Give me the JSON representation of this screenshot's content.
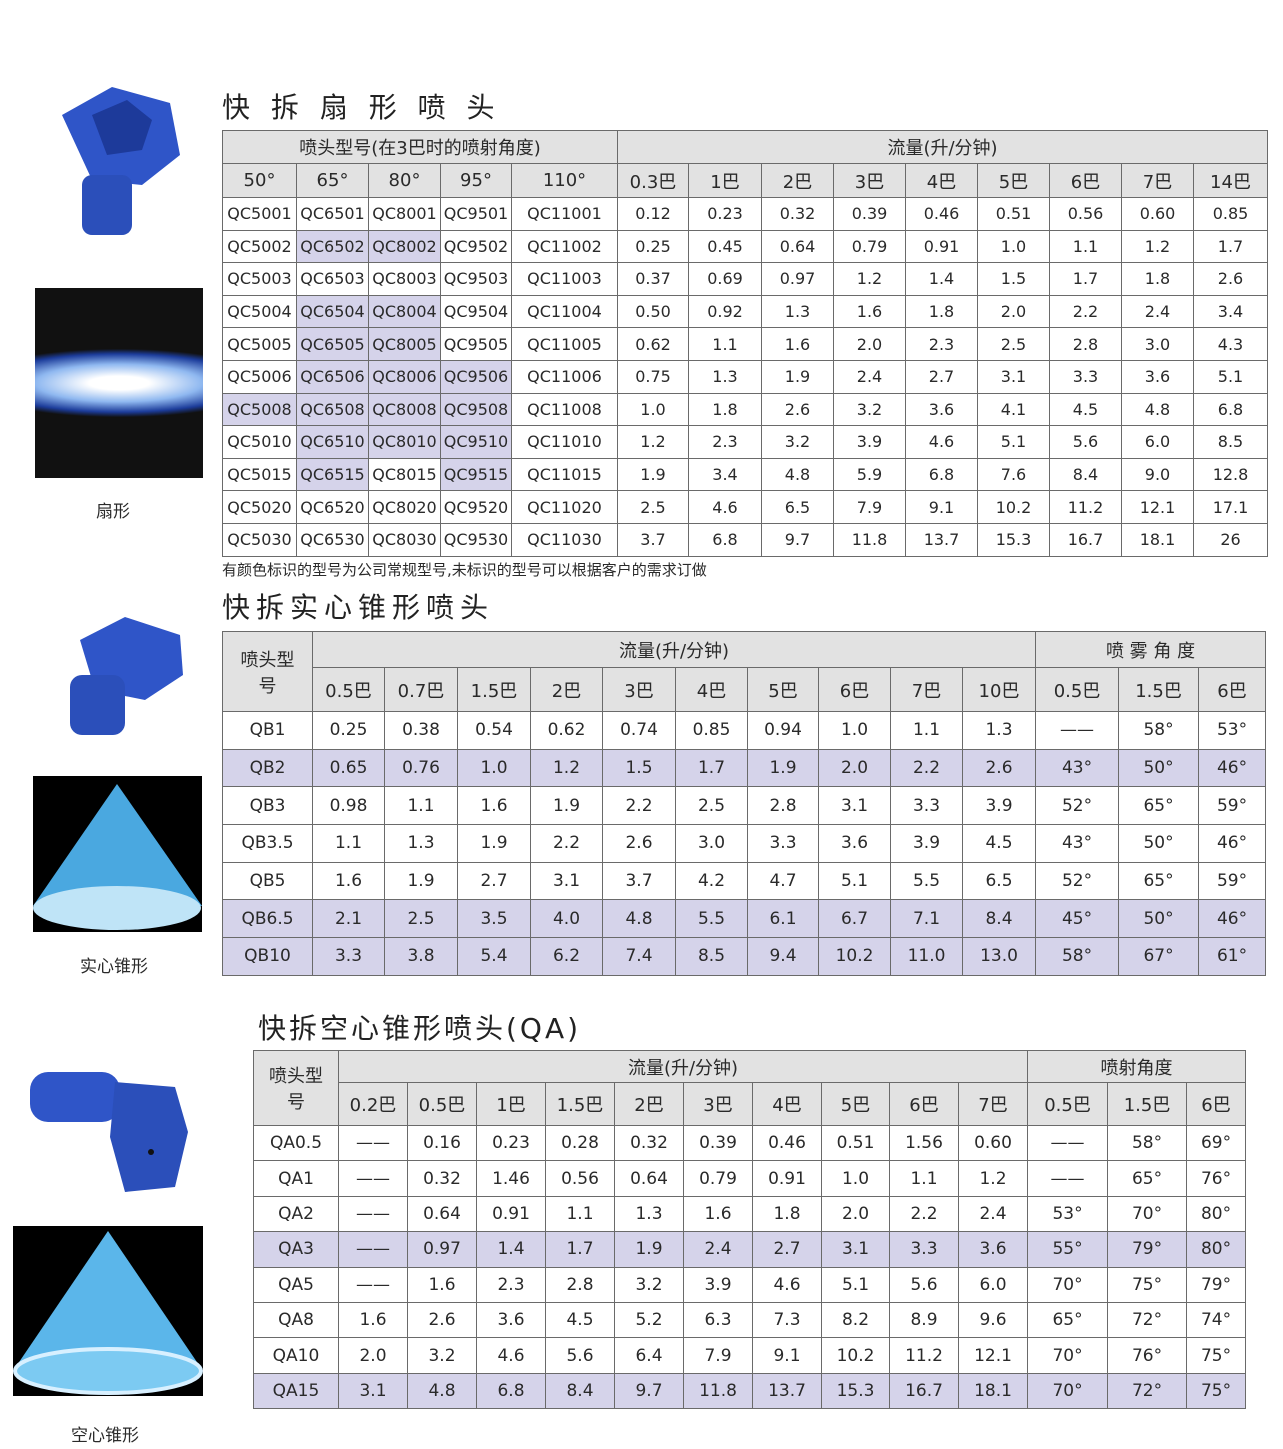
{
  "fan": {
    "title": "快 拆 扇 形 喷 头",
    "label": "扇形",
    "note": "有颜色标识的型号为公司常规型号,未标识的型号可以根据客户的需求订做",
    "group_model": "喷头型号(在3巴时的喷射角度)",
    "group_flow": "流量(升/分钟)",
    "angles": [
      "50°",
      "65°",
      "80°",
      "95°",
      "110°"
    ],
    "pressures": [
      "0.3巴",
      "1巴",
      "2巴",
      "3巴",
      "4巴",
      "5巴",
      "6巴",
      "7巴",
      "14巴"
    ],
    "rows": [
      [
        "QC5001",
        "QC6501",
        "QC8001",
        "QC9501",
        "QC11001",
        "0.12",
        "0.23",
        "0.32",
        "0.39",
        "0.46",
        "0.51",
        "0.56",
        "0.60",
        "0.85"
      ],
      [
        "QC5002",
        "QC6502",
        "QC8002",
        "QC9502",
        "QC11002",
        "0.25",
        "0.45",
        "0.64",
        "0.79",
        "0.91",
        "1.0",
        "1.1",
        "1.2",
        "1.7"
      ],
      [
        "QC5003",
        "QC6503",
        "QC8003",
        "QC9503",
        "QC11003",
        "0.37",
        "0.69",
        "0.97",
        "1.2",
        "1.4",
        "1.5",
        "1.7",
        "1.8",
        "2.6"
      ],
      [
        "QC5004",
        "QC6504",
        "QC8004",
        "QC9504",
        "QC11004",
        "0.50",
        "0.92",
        "1.3",
        "1.6",
        "1.8",
        "2.0",
        "2.2",
        "2.4",
        "3.4"
      ],
      [
        "QC5005",
        "QC6505",
        "QC8005",
        "QC9505",
        "QC11005",
        "0.62",
        "1.1",
        "1.6",
        "2.0",
        "2.3",
        "2.5",
        "2.8",
        "3.0",
        "4.3"
      ],
      [
        "QC5006",
        "QC6506",
        "QC8006",
        "QC9506",
        "QC11006",
        "0.75",
        "1.3",
        "1.9",
        "2.4",
        "2.7",
        "3.1",
        "3.3",
        "3.6",
        "5.1"
      ],
      [
        "QC5008",
        "QC6508",
        "QC8008",
        "QC9508",
        "QC11008",
        "1.0",
        "1.8",
        "2.6",
        "3.2",
        "3.6",
        "4.1",
        "4.5",
        "4.8",
        "6.8"
      ],
      [
        "QC5010",
        "QC6510",
        "QC8010",
        "QC9510",
        "QC11010",
        "1.2",
        "2.3",
        "3.2",
        "3.9",
        "4.6",
        "5.1",
        "5.6",
        "6.0",
        "8.5"
      ],
      [
        "QC5015",
        "QC6515",
        "QC8015",
        "QC9515",
        "QC11015",
        "1.9",
        "3.4",
        "4.8",
        "5.9",
        "6.8",
        "7.6",
        "8.4",
        "9.0",
        "12.8"
      ],
      [
        "QC5020",
        "QC6520",
        "QC8020",
        "QC9520",
        "QC11020",
        "2.5",
        "4.6",
        "6.5",
        "7.9",
        "9.1",
        "10.2",
        "11.2",
        "12.1",
        "17.1"
      ],
      [
        "QC5030",
        "QC6530",
        "QC8030",
        "QC9530",
        "QC11030",
        "3.7",
        "6.8",
        "9.7",
        "11.8",
        "13.7",
        "15.3",
        "16.7",
        "18.1",
        "26"
      ]
    ],
    "highlighted": [
      "QC6502",
      "QC8002",
      "QC6504",
      "QC8004",
      "QC6505",
      "QC8005",
      "QC6506",
      "QC8006",
      "QC9506",
      "QC5008",
      "QC6508",
      "QC8008",
      "QC9508",
      "QC6510",
      "QC8010",
      "QC9510",
      "QC6515",
      "QC9515"
    ]
  },
  "full": {
    "title": "快拆实心锥形喷头",
    "label": "实心锥形",
    "model_header": "喷头型号",
    "group_flow": "流量(升/分钟)",
    "group_angle": "喷 雾 角 度",
    "pressures": [
      "0.5巴",
      "0.7巴",
      "1.5巴",
      "2巴",
      "3巴",
      "4巴",
      "5巴",
      "6巴",
      "7巴",
      "10巴"
    ],
    "angle_pressures": [
      "0.5巴",
      "1.5巴",
      "6巴"
    ],
    "rows": [
      [
        "QB1",
        "0.25",
        "0.38",
        "0.54",
        "0.62",
        "0.74",
        "0.85",
        "0.94",
        "1.0",
        "1.1",
        "1.3",
        "——",
        "58°",
        "53°"
      ],
      [
        "QB2",
        "0.65",
        "0.76",
        "1.0",
        "1.2",
        "1.5",
        "1.7",
        "1.9",
        "2.0",
        "2.2",
        "2.6",
        "43°",
        "50°",
        "46°"
      ],
      [
        "QB3",
        "0.98",
        "1.1",
        "1.6",
        "1.9",
        "2.2",
        "2.5",
        "2.8",
        "3.1",
        "3.3",
        "3.9",
        "52°",
        "65°",
        "59°"
      ],
      [
        "QB3.5",
        "1.1",
        "1.3",
        "1.9",
        "2.2",
        "2.6",
        "3.0",
        "3.3",
        "3.6",
        "3.9",
        "4.5",
        "43°",
        "50°",
        "46°"
      ],
      [
        "QB5",
        "1.6",
        "1.9",
        "2.7",
        "3.1",
        "3.7",
        "4.2",
        "4.7",
        "5.1",
        "5.5",
        "6.5",
        "52°",
        "65°",
        "59°"
      ],
      [
        "QB6.5",
        "2.1",
        "2.5",
        "3.5",
        "4.0",
        "4.8",
        "5.5",
        "6.1",
        "6.7",
        "7.1",
        "8.4",
        "45°",
        "50°",
        "46°"
      ],
      [
        "QB10",
        "3.3",
        "3.8",
        "5.4",
        "6.2",
        "7.4",
        "8.5",
        "9.4",
        "10.2",
        "11.0",
        "13.0",
        "58°",
        "67°",
        "61°"
      ]
    ],
    "highlighted_rows": [
      "QB2",
      "QB6.5",
      "QB10"
    ]
  },
  "hollow": {
    "title": "快拆空心锥形喷头(QA)",
    "label": "空心锥形",
    "model_header": "喷头型号",
    "group_flow": "流量(升/分钟)",
    "group_angle": "喷射角度",
    "pressures": [
      "0.2巴",
      "0.5巴",
      "1巴",
      "1.5巴",
      "2巴",
      "3巴",
      "4巴",
      "5巴",
      "6巴",
      "7巴"
    ],
    "angle_pressures": [
      "0.5巴",
      "1.5巴",
      "6巴"
    ],
    "rows": [
      [
        "QA0.5",
        "——",
        "0.16",
        "0.23",
        "0.28",
        "0.32",
        "0.39",
        "0.46",
        "0.51",
        "1.56",
        "0.60",
        "——",
        "58°",
        "69°"
      ],
      [
        "QA1",
        "——",
        "0.32",
        "1.46",
        "0.56",
        "0.64",
        "0.79",
        "0.91",
        "1.0",
        "1.1",
        "1.2",
        "——",
        "65°",
        "76°"
      ],
      [
        "QA2",
        "——",
        "0.64",
        "0.91",
        "1.1",
        "1.3",
        "1.6",
        "1.8",
        "2.0",
        "2.2",
        "2.4",
        "53°",
        "70°",
        "80°"
      ],
      [
        "QA3",
        "——",
        "0.97",
        "1.4",
        "1.7",
        "1.9",
        "2.4",
        "2.7",
        "3.1",
        "3.3",
        "3.6",
        "55°",
        "79°",
        "80°"
      ],
      [
        "QA5",
        "——",
        "1.6",
        "2.3",
        "2.8",
        "3.2",
        "3.9",
        "4.6",
        "5.1",
        "5.6",
        "6.0",
        "70°",
        "75°",
        "79°"
      ],
      [
        "QA8",
        "1.6",
        "2.6",
        "3.6",
        "4.5",
        "5.2",
        "6.3",
        "7.3",
        "8.2",
        "8.9",
        "9.6",
        "65°",
        "72°",
        "74°"
      ],
      [
        "QA10",
        "2.0",
        "3.2",
        "4.6",
        "5.6",
        "6.4",
        "7.9",
        "9.1",
        "10.2",
        "11.2",
        "12.1",
        "70°",
        "76°",
        "75°"
      ],
      [
        "QA15",
        "3.1",
        "4.8",
        "6.8",
        "8.4",
        "9.7",
        "11.8",
        "13.7",
        "15.3",
        "16.7",
        "18.1",
        "70°",
        "72°",
        "75°"
      ]
    ],
    "highlighted_rows": [
      "QA3",
      "QA15"
    ]
  },
  "colors": {
    "highlight": "#d5d3ea",
    "header": "#e2e2e2",
    "nozzle": "#2f55c8"
  }
}
